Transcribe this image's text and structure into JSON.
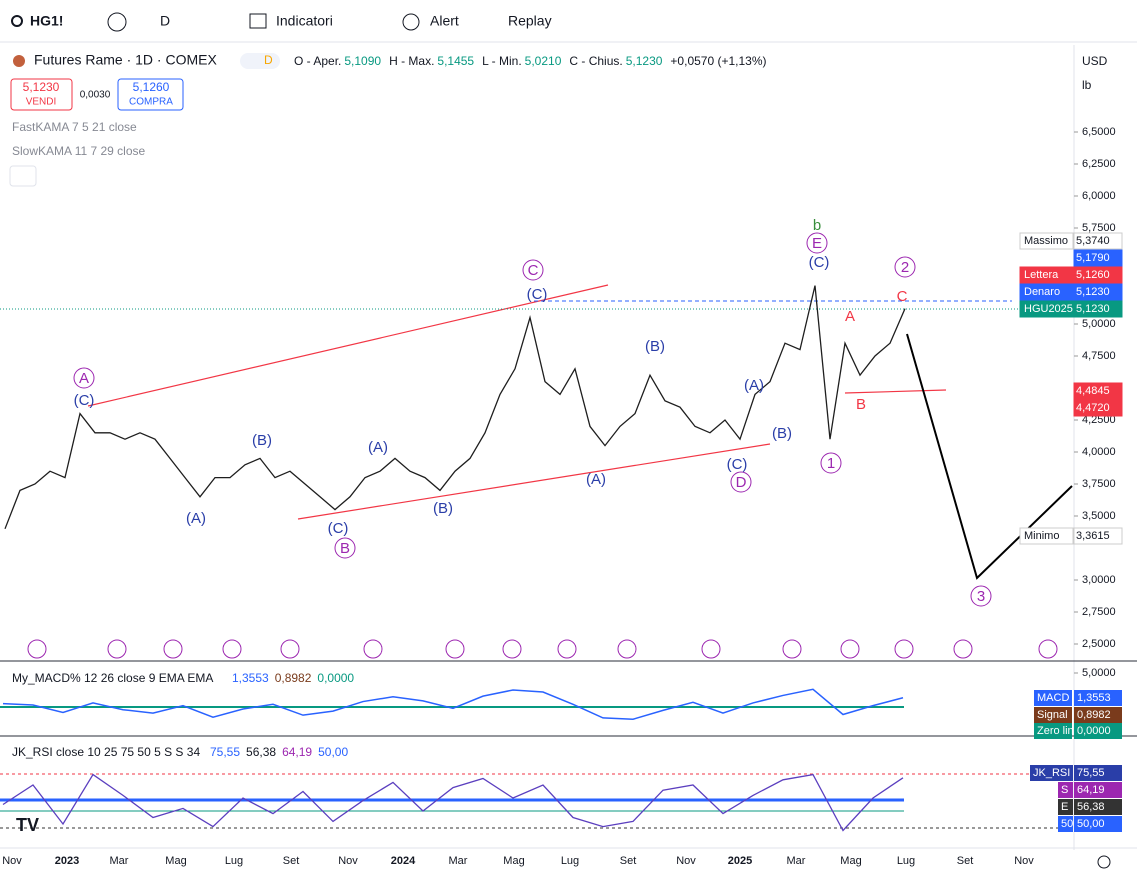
{
  "toolbar": {
    "symbol": "HG1!",
    "interval": "D",
    "indicators": "Indicatori",
    "alert": "Alert",
    "replay": "Replay"
  },
  "legend": {
    "title": "Futures Rame · 1D · COMEX",
    "badge": "D",
    "ohlc": [
      "O - Aper.",
      "5,1090",
      "H - Max.",
      "5,1455",
      "L - Min.",
      "5,0210",
      "C - Chius.",
      "5,1230",
      "+0,0570 (+1,13%)"
    ],
    "sell": {
      "price": "5,1230",
      "label": "VENDI"
    },
    "spread": "0,0030",
    "buy": {
      "price": "5,1260",
      "label": "COMPRA"
    },
    "studies": [
      "FastKAMA 7 5 21 close",
      "SlowKAMA 11 7 29 close"
    ]
  },
  "chart": {
    "type": "line",
    "currency": "USD",
    "unit": "lb",
    "color": "#1e1e1e",
    "yticks": [
      {
        "value": 6.5,
        "label": "6,5000"
      },
      {
        "value": 6.25,
        "label": "6,2500"
      },
      {
        "value": 6.0,
        "label": "6,0000"
      },
      {
        "value": 5.75,
        "label": "5,7500"
      },
      {
        "value": 5.0,
        "label": "5,0000"
      },
      {
        "value": 4.75,
        "label": "4,7500"
      },
      {
        "value": 4.25,
        "label": "4,2500"
      },
      {
        "value": 4.0,
        "label": "4,0000"
      },
      {
        "value": 3.75,
        "label": "3,7500"
      },
      {
        "value": 3.5,
        "label": "3,5000"
      },
      {
        "value": 3.0,
        "label": "3,0000"
      },
      {
        "value": 2.75,
        "label": "2,7500"
      },
      {
        "value": 2.5,
        "label": "2,5000"
      }
    ],
    "values": [
      3.4,
      3.7,
      3.75,
      3.85,
      3.8,
      4.3,
      4.15,
      4.15,
      4.1,
      4.15,
      4.1,
      3.95,
      3.8,
      3.65,
      3.8,
      3.8,
      3.9,
      3.95,
      3.8,
      3.85,
      3.75,
      3.65,
      3.55,
      3.65,
      3.8,
      3.85,
      3.95,
      3.85,
      3.8,
      3.7,
      3.85,
      3.95,
      4.15,
      4.45,
      4.65,
      5.05,
      4.55,
      4.45,
      4.65,
      4.2,
      4.05,
      4.2,
      4.3,
      4.6,
      4.4,
      4.35,
      4.2,
      4.15,
      4.25,
      4.1,
      4.45,
      4.55,
      4.85,
      4.8,
      5.3,
      4.1,
      4.85,
      4.6,
      4.75,
      4.85,
      5.12
    ],
    "xlabels": [
      "Nov",
      "2023",
      "Mar",
      "Mag",
      "Lug",
      "Set",
      "Nov",
      "2024",
      "Mar",
      "Mag",
      "Lug",
      "Set",
      "Nov",
      "2025",
      "Mar",
      "Mag",
      "Lug",
      "Set",
      "Nov"
    ],
    "tags": [
      [
        "Massimo",
        "5,3740"
      ],
      [
        "",
        "5,1790"
      ],
      [
        "Lettera",
        "5,1260"
      ],
      [
        "Denaro",
        "5,1230"
      ],
      [
        "HGU2025",
        "5,1230"
      ],
      [
        "",
        "4,4845"
      ],
      [
        "",
        "4,4720"
      ],
      [
        "Minimo",
        "3,3615"
      ]
    ],
    "waves": [
      "A",
      "(C)",
      "(A)",
      "(B)",
      "(C)",
      "B",
      "(A)",
      "(B)",
      "C",
      "(C)",
      "(A)",
      "(B)",
      "(C)",
      "D",
      "(A)",
      "(B)",
      "b",
      "E",
      "(C)",
      "1",
      "A",
      "B",
      "2",
      "C",
      "3"
    ]
  },
  "macd": {
    "title": "My_MACD% 12 26 close 9 EMA EMA",
    "readings": [
      "1,3553",
      "0,8982",
      "0,0000"
    ],
    "ytick": {
      "value": 5,
      "label": "5,0000"
    },
    "values": [
      0.5,
      0.3,
      -0.8,
      0.6,
      -0.4,
      -0.9,
      0.2,
      -1.5,
      -0.3,
      0.4,
      -1.2,
      -0.6,
      0.8,
      1.5,
      0.9,
      -0.2,
      1.6,
      2.5,
      2.2,
      0.4,
      -1.6,
      -1.8,
      -0.5,
      0.7,
      -0.9,
      0.6,
      1.7,
      2.6,
      -1.1,
      0.2,
      1.36
    ],
    "tags": [
      [
        "MACD",
        "1,3553"
      ],
      [
        "Signal",
        "0,8982"
      ],
      [
        "Zero line",
        "0,0000"
      ]
    ]
  },
  "rsi": {
    "title": "JK_RSI close 10 25 75 50 5 S S 34",
    "readings": [
      "75,55",
      "56,38",
      "64,19",
      "50,00"
    ],
    "values": [
      55,
      70,
      40,
      78,
      62,
      45,
      52,
      38,
      60,
      48,
      65,
      42,
      58,
      72,
      50,
      68,
      75,
      60,
      70,
      45,
      38,
      42,
      66,
      70,
      48,
      62,
      74,
      78,
      35,
      60,
      75.55
    ],
    "tags": [
      [
        "JK_RSI",
        "75,55"
      ],
      [
        "S",
        "64,19"
      ],
      [
        "E",
        "56,38"
      ],
      [
        "50",
        "50,00"
      ]
    ]
  }
}
